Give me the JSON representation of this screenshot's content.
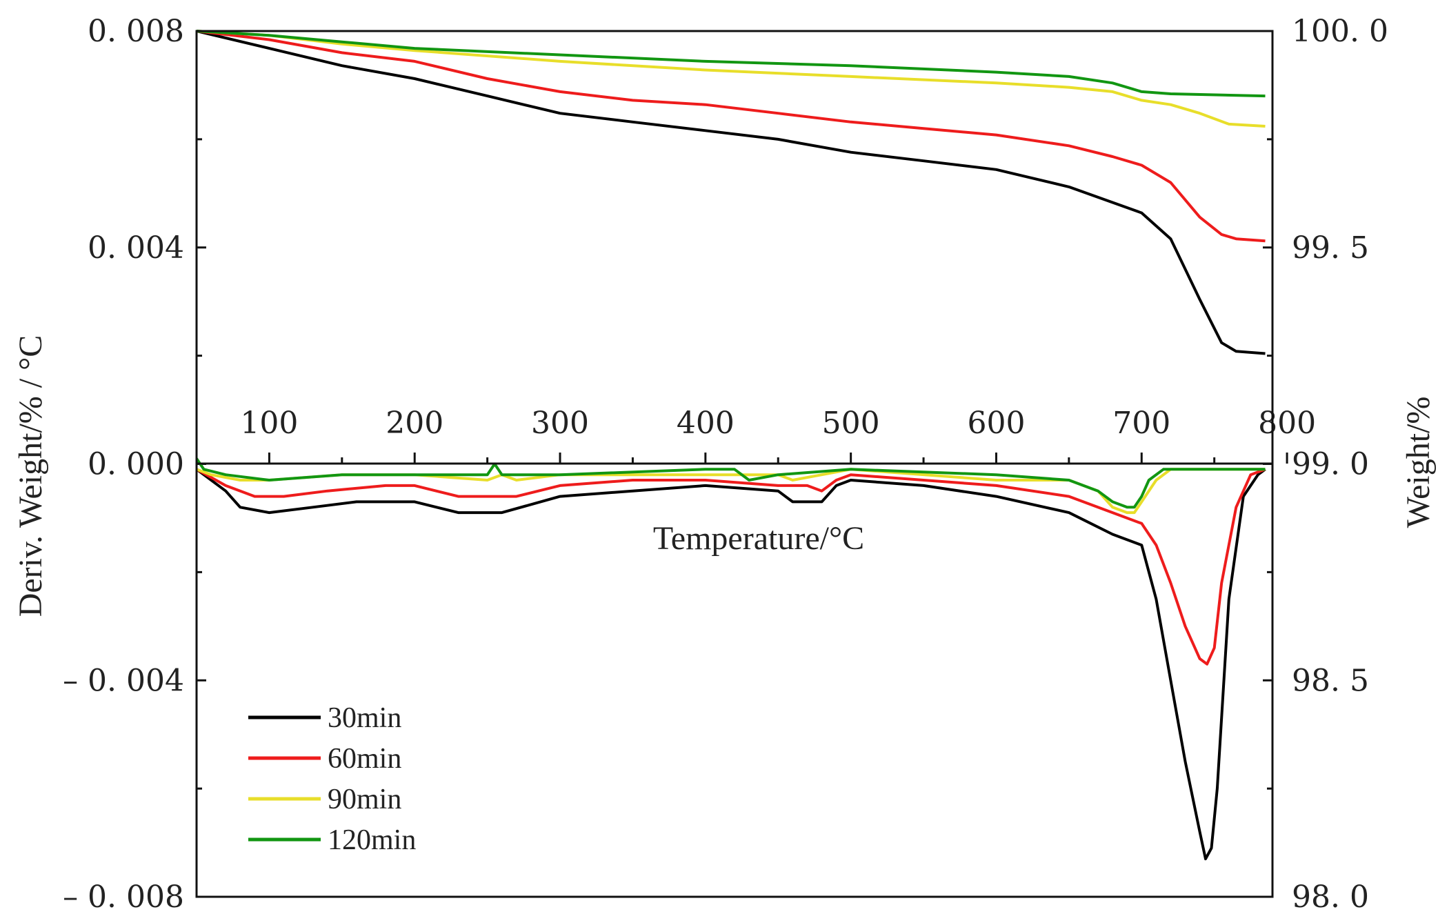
{
  "chart_data": {
    "type": "line",
    "title": "",
    "xlabel": "Temperature/°C",
    "ylabel_left": "Deriv. Weight/% / °C",
    "ylabel_right": "Weight/%",
    "xlim": [
      50,
      790
    ],
    "ylim_left": [
      -0.008,
      0.008
    ],
    "ylim_right": [
      98.0,
      100.0
    ],
    "x_ticks": [
      100,
      200,
      300,
      400,
      500,
      600,
      700,
      800
    ],
    "x_tick_labels": [
      "100",
      "200",
      "300",
      "400",
      "500",
      "600",
      "700",
      "800"
    ],
    "left_ticks": [
      0.008,
      0.004,
      0.0,
      -0.004,
      -0.008
    ],
    "left_tick_labels": [
      "0. 008",
      "0. 004",
      "0. 000",
      "– 0. 004",
      "– 0. 008"
    ],
    "right_ticks": [
      100.0,
      99.5,
      99.0,
      98.5,
      98.0
    ],
    "right_tick_labels": [
      "100. 0",
      "99. 5",
      "99. 0",
      "98. 5",
      "98. 0"
    ],
    "grid": false,
    "legend_position": "bottom-left",
    "series": [
      {
        "name": "30min",
        "color": "#000000",
        "weight": {
          "x": [
            50,
            100,
            150,
            200,
            250,
            300,
            350,
            400,
            450,
            500,
            550,
            600,
            650,
            700,
            720,
            740,
            755,
            765,
            785
          ],
          "y": [
            100.0,
            99.96,
            99.92,
            99.89,
            99.85,
            99.81,
            99.79,
            99.77,
            99.75,
            99.72,
            99.7,
            99.68,
            99.64,
            99.58,
            99.52,
            99.38,
            99.28,
            99.26,
            99.255
          ]
        },
        "deriv": {
          "x": [
            50,
            70,
            80,
            100,
            130,
            160,
            200,
            230,
            260,
            300,
            350,
            400,
            450,
            460,
            480,
            490,
            500,
            550,
            600,
            650,
            680,
            700,
            710,
            720,
            730,
            740,
            744,
            748,
            752,
            760,
            770,
            780,
            785
          ],
          "y": [
            -0.0001,
            -0.0005,
            -0.0008,
            -0.0009,
            -0.0008,
            -0.0007,
            -0.0007,
            -0.0009,
            -0.0009,
            -0.0006,
            -0.0005,
            -0.0004,
            -0.0005,
            -0.0007,
            -0.0007,
            -0.0004,
            -0.0003,
            -0.0004,
            -0.0006,
            -0.0009,
            -0.0013,
            -0.0015,
            -0.0025,
            -0.004,
            -0.0055,
            -0.0068,
            -0.0073,
            -0.0071,
            -0.006,
            -0.0025,
            -0.0006,
            -0.0002,
            -0.0001
          ]
        }
      },
      {
        "name": "60min",
        "color": "#ee1c1c",
        "weight": {
          "x": [
            50,
            100,
            150,
            200,
            250,
            300,
            350,
            400,
            450,
            500,
            550,
            600,
            650,
            680,
            700,
            720,
            740,
            755,
            765,
            785
          ],
          "y": [
            100.0,
            99.98,
            99.95,
            99.93,
            99.89,
            99.86,
            99.84,
            99.83,
            99.81,
            99.79,
            99.775,
            99.76,
            99.735,
            99.71,
            99.69,
            99.65,
            99.57,
            99.53,
            99.52,
            99.515
          ]
        },
        "deriv": {
          "x": [
            50,
            70,
            90,
            110,
            140,
            180,
            200,
            230,
            270,
            300,
            350,
            400,
            450,
            470,
            480,
            490,
            500,
            550,
            600,
            650,
            680,
            700,
            710,
            720,
            730,
            740,
            745,
            750,
            755,
            765,
            775,
            785
          ],
          "y": [
            -0.0001,
            -0.0004,
            -0.0006,
            -0.0006,
            -0.0005,
            -0.0004,
            -0.0004,
            -0.0006,
            -0.0006,
            -0.0004,
            -0.0003,
            -0.0003,
            -0.0004,
            -0.0004,
            -0.0005,
            -0.0003,
            -0.0002,
            -0.0003,
            -0.0004,
            -0.0006,
            -0.0009,
            -0.0011,
            -0.0015,
            -0.0022,
            -0.003,
            -0.0036,
            -0.0037,
            -0.0034,
            -0.0022,
            -0.0008,
            -0.0002,
            -0.0001
          ]
        }
      },
      {
        "name": "90min",
        "color": "#e8de2a",
        "weight": {
          "x": [
            50,
            100,
            150,
            200,
            300,
            400,
            500,
            600,
            650,
            680,
            700,
            720,
            740,
            760,
            785
          ],
          "y": [
            100.0,
            99.99,
            99.97,
            99.955,
            99.93,
            99.91,
            99.895,
            99.88,
            99.87,
            99.86,
            99.84,
            99.83,
            99.81,
            99.785,
            99.78
          ]
        },
        "deriv": {
          "x": [
            50,
            60,
            80,
            100,
            150,
            200,
            250,
            260,
            270,
            300,
            400,
            450,
            460,
            480,
            500,
            600,
            650,
            670,
            680,
            690,
            695,
            700,
            710,
            720,
            740,
            785
          ],
          "y": [
            -0.0001,
            -0.0002,
            -0.0003,
            -0.0003,
            -0.0002,
            -0.0002,
            -0.0003,
            -0.0002,
            -0.0003,
            -0.0002,
            -0.0002,
            -0.0002,
            -0.0003,
            -0.0002,
            -0.0001,
            -0.0003,
            -0.0003,
            -0.0005,
            -0.0008,
            -0.0009,
            -0.0009,
            -0.0007,
            -0.0003,
            -0.0001,
            -0.0001,
            -0.0001
          ]
        }
      },
      {
        "name": "120min",
        "color": "#129612",
        "weight": {
          "x": [
            50,
            100,
            150,
            200,
            300,
            400,
            500,
            600,
            650,
            680,
            700,
            720,
            785
          ],
          "y": [
            100.0,
            99.99,
            99.975,
            99.96,
            99.945,
            99.93,
            99.92,
            99.905,
            99.895,
            99.88,
            99.86,
            99.855,
            99.85
          ]
        },
        "deriv": {
          "x": [
            50,
            55,
            70,
            100,
            150,
            200,
            250,
            255,
            260,
            300,
            400,
            420,
            430,
            450,
            500,
            600,
            650,
            670,
            680,
            690,
            695,
            700,
            705,
            715,
            730,
            785
          ],
          "y": [
            0.0001,
            -0.0001,
            -0.0002,
            -0.0003,
            -0.0002,
            -0.0002,
            -0.0002,
            0.0,
            -0.0002,
            -0.0002,
            -0.0001,
            -0.0001,
            -0.0003,
            -0.0002,
            -0.0001,
            -0.0002,
            -0.0003,
            -0.0005,
            -0.0007,
            -0.0008,
            -0.0008,
            -0.0006,
            -0.0003,
            -0.0001,
            -0.0001,
            -0.0001
          ]
        }
      }
    ]
  }
}
